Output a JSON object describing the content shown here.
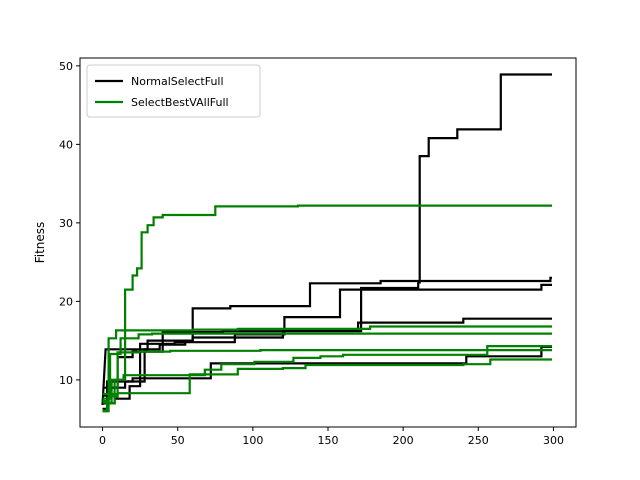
{
  "chart_data": {
    "type": "line",
    "ylabel": "Fitness",
    "xlabel": "",
    "xlim": [
      -15,
      315
    ],
    "ylim": [
      4,
      51
    ],
    "x_ticks": [
      0,
      50,
      100,
      150,
      200,
      250,
      300
    ],
    "y_ticks": [
      10,
      20,
      30,
      40,
      50
    ],
    "grid": false,
    "legend_position": "top-left",
    "legend": [
      {
        "label": "NormalSelectFull",
        "color": "#000000"
      },
      {
        "label": "SelectBestVAllFull",
        "color": "#008000"
      }
    ],
    "series": [
      {
        "group": "NormalSelectFull",
        "color": "#000000",
        "points": [
          [
            0,
            6.8
          ],
          [
            2,
            13.9
          ],
          [
            30,
            13.9
          ],
          [
            30,
            15.0
          ],
          [
            60,
            15.0
          ],
          [
            60,
            19.1
          ],
          [
            85,
            19.1
          ],
          [
            85,
            19.4
          ],
          [
            138,
            19.4
          ],
          [
            138,
            22.3
          ],
          [
            185,
            22.3
          ],
          [
            185,
            22.6
          ],
          [
            298,
            22.6
          ],
          [
            298,
            23.0
          ],
          [
            299,
            23.0
          ]
        ]
      },
      {
        "group": "NormalSelectFull",
        "color": "#000000",
        "points": [
          [
            0,
            8.0
          ],
          [
            5,
            8.0
          ],
          [
            5,
            9.0
          ],
          [
            15,
            9.0
          ],
          [
            15,
            9.8
          ],
          [
            28,
            9.8
          ],
          [
            28,
            13.9
          ],
          [
            38,
            13.9
          ],
          [
            38,
            14.5
          ],
          [
            55,
            14.5
          ],
          [
            55,
            14.9
          ],
          [
            60,
            14.9
          ],
          [
            60,
            15.4
          ],
          [
            120,
            15.4
          ],
          [
            120,
            16.3
          ],
          [
            170,
            16.3
          ],
          [
            170,
            17.3
          ],
          [
            240,
            17.3
          ],
          [
            240,
            17.8
          ],
          [
            299,
            17.8
          ]
        ]
      },
      {
        "group": "NormalSelectFull",
        "color": "#000000",
        "points": [
          [
            0,
            7.0
          ],
          [
            8,
            7.0
          ],
          [
            8,
            7.6
          ],
          [
            18,
            7.6
          ],
          [
            18,
            9.2
          ],
          [
            25,
            9.2
          ],
          [
            25,
            14.6
          ],
          [
            48,
            14.6
          ],
          [
            48,
            14.8
          ],
          [
            88,
            14.8
          ],
          [
            88,
            15.8
          ],
          [
            121,
            15.8
          ],
          [
            121,
            18.0
          ],
          [
            158,
            18.0
          ],
          [
            158,
            21.5
          ],
          [
            292,
            21.5
          ],
          [
            292,
            22.1
          ],
          [
            299,
            22.1
          ]
        ]
      },
      {
        "group": "NormalSelectFull",
        "color": "#000000",
        "points": [
          [
            0,
            6.3
          ],
          [
            3,
            6.3
          ],
          [
            3,
            9.8
          ],
          [
            20,
            9.8
          ],
          [
            20,
            10.2
          ],
          [
            47,
            10.2
          ],
          [
            47,
            10.2
          ],
          [
            72,
            10.2
          ],
          [
            72,
            12.1
          ],
          [
            242,
            12.1
          ],
          [
            242,
            13.0
          ],
          [
            292,
            13.0
          ],
          [
            292,
            14.2
          ],
          [
            299,
            14.2
          ]
        ]
      },
      {
        "group": "NormalSelectFull",
        "color": "#000000",
        "points": [
          [
            0,
            9.0
          ],
          [
            10,
            9.0
          ],
          [
            10,
            12.9
          ],
          [
            20,
            12.9
          ],
          [
            20,
            13.6
          ],
          [
            40,
            13.6
          ],
          [
            40,
            16.1
          ],
          [
            80,
            16.1
          ],
          [
            80,
            16.2
          ],
          [
            172,
            16.2
          ],
          [
            172,
            21.7
          ],
          [
            210,
            21.7
          ],
          [
            210,
            22.4
          ],
          [
            211,
            22.4
          ],
          [
            211,
            38.5
          ],
          [
            217,
            38.5
          ],
          [
            217,
            40.8
          ],
          [
            236,
            40.8
          ],
          [
            236,
            41.9
          ],
          [
            265,
            41.9
          ],
          [
            265,
            48.9
          ],
          [
            299,
            48.9
          ]
        ]
      },
      {
        "group": "SelectBestVAllFull",
        "color": "#008000",
        "points": [
          [
            0,
            6.1
          ],
          [
            3,
            6.1
          ],
          [
            3,
            7.0
          ],
          [
            8,
            7.0
          ],
          [
            8,
            10.0
          ],
          [
            15,
            10.0
          ],
          [
            15,
            21.5
          ],
          [
            20,
            21.5
          ],
          [
            20,
            23.3
          ],
          [
            23,
            23.3
          ],
          [
            23,
            24.2
          ],
          [
            26,
            24.2
          ],
          [
            26,
            28.8
          ],
          [
            30,
            28.8
          ],
          [
            30,
            29.7
          ],
          [
            34,
            29.7
          ],
          [
            34,
            30.7
          ],
          [
            40,
            30.7
          ],
          [
            40,
            31.0
          ],
          [
            75,
            31.0
          ],
          [
            75,
            32.1
          ],
          [
            130,
            32.1
          ],
          [
            130,
            32.2
          ],
          [
            299,
            32.2
          ]
        ]
      },
      {
        "group": "SelectBestVAllFull",
        "color": "#008000",
        "points": [
          [
            0,
            7.3
          ],
          [
            4,
            7.3
          ],
          [
            4,
            15.3
          ],
          [
            9,
            15.3
          ],
          [
            9,
            16.3
          ],
          [
            25,
            16.3
          ],
          [
            25,
            16.3
          ],
          [
            60,
            16.3
          ],
          [
            60,
            16.4
          ],
          [
            90,
            16.4
          ],
          [
            90,
            16.5
          ],
          [
            178,
            16.5
          ],
          [
            178,
            16.8
          ],
          [
            299,
            16.8
          ]
        ]
      },
      {
        "group": "SelectBestVAllFull",
        "color": "#008000",
        "points": [
          [
            0,
            7.6
          ],
          [
            5,
            7.6
          ],
          [
            5,
            13.3
          ],
          [
            12,
            13.3
          ],
          [
            12,
            15.3
          ],
          [
            24,
            15.3
          ],
          [
            24,
            15.8
          ],
          [
            33,
            15.8
          ],
          [
            33,
            15.9
          ],
          [
            299,
            15.9
          ]
        ]
      },
      {
        "group": "SelectBestVAllFull",
        "color": "#008000",
        "points": [
          [
            0,
            6.0
          ],
          [
            4,
            6.0
          ],
          [
            4,
            7.9
          ],
          [
            10,
            7.9
          ],
          [
            10,
            8.3
          ],
          [
            18,
            8.3
          ],
          [
            18,
            8.3
          ],
          [
            58,
            8.3
          ],
          [
            58,
            10.7
          ],
          [
            90,
            10.7
          ],
          [
            90,
            11.4
          ],
          [
            120,
            11.4
          ],
          [
            120,
            11.5
          ],
          [
            135,
            11.5
          ],
          [
            135,
            11.9
          ],
          [
            240,
            11.9
          ],
          [
            240,
            12.0
          ],
          [
            258,
            12.0
          ],
          [
            258,
            12.6
          ],
          [
            299,
            12.6
          ]
        ]
      },
      {
        "group": "SelectBestVAllFull",
        "color": "#008000",
        "points": [
          [
            0,
            7.1
          ],
          [
            6,
            7.1
          ],
          [
            6,
            10.0
          ],
          [
            14,
            10.0
          ],
          [
            14,
            10.6
          ],
          [
            68,
            10.6
          ],
          [
            68,
            11.3
          ],
          [
            79,
            11.3
          ],
          [
            79,
            12.0
          ],
          [
            101,
            12.0
          ],
          [
            101,
            12.3
          ],
          [
            127,
            12.3
          ],
          [
            127,
            12.8
          ],
          [
            145,
            12.8
          ],
          [
            145,
            13.0
          ],
          [
            160,
            13.0
          ],
          [
            160,
            13.2
          ],
          [
            256,
            13.2
          ],
          [
            256,
            14.3
          ],
          [
            299,
            14.3
          ]
        ]
      },
      {
        "group": "SelectBestVAllFull",
        "color": "#008000",
        "points": [
          [
            0,
            8.2
          ],
          [
            10,
            8.2
          ],
          [
            10,
            13.5
          ],
          [
            24,
            13.5
          ],
          [
            24,
            13.6
          ],
          [
            45,
            13.6
          ],
          [
            45,
            13.7
          ],
          [
            105,
            13.7
          ],
          [
            105,
            13.8
          ],
          [
            299,
            13.8
          ]
        ]
      }
    ]
  }
}
